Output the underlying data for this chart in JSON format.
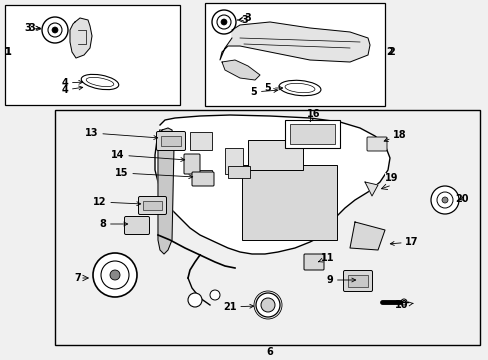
{
  "bg_color": "#f0f0f0",
  "white": "#ffffff",
  "black": "#000000",
  "fig_w": 4.89,
  "fig_h": 3.6,
  "dpi": 100
}
